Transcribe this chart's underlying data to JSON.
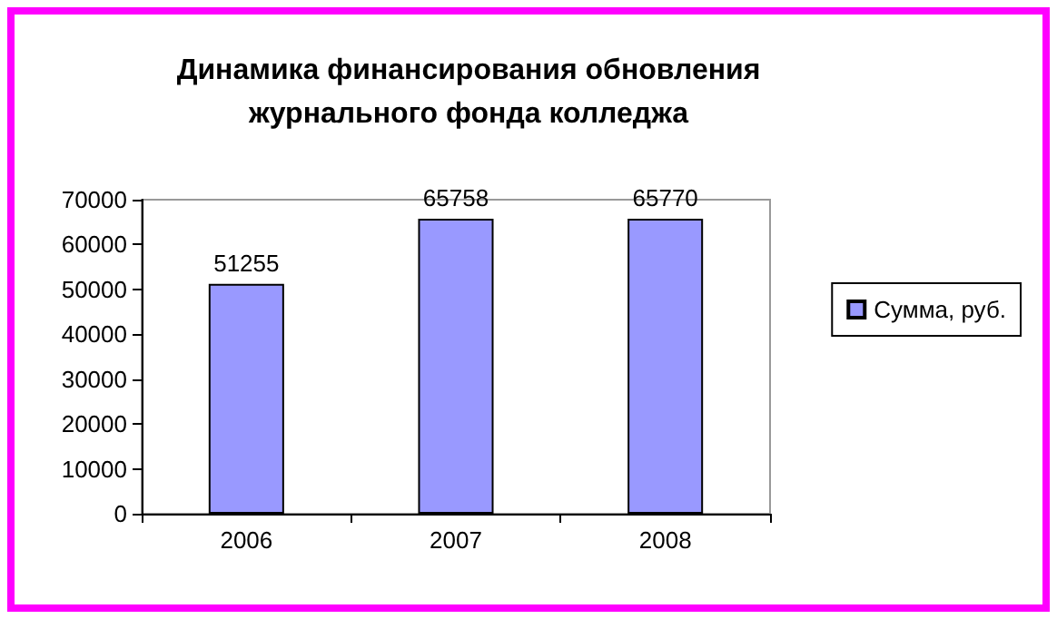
{
  "chart_data": {
    "type": "bar",
    "title": "Динамика финансирования обновления\nжурнального фонда колледжа",
    "categories": [
      "2006",
      "2007",
      "2008"
    ],
    "series": [
      {
        "name": "Сумма, руб.",
        "color": "#9999ff",
        "values": [
          51255,
          65758,
          65770
        ]
      }
    ],
    "ylim": [
      0,
      70000
    ],
    "yticks": [
      0,
      10000,
      20000,
      30000,
      40000,
      50000,
      60000,
      70000
    ],
    "data_labels": true,
    "grid": false,
    "legend": "right"
  }
}
